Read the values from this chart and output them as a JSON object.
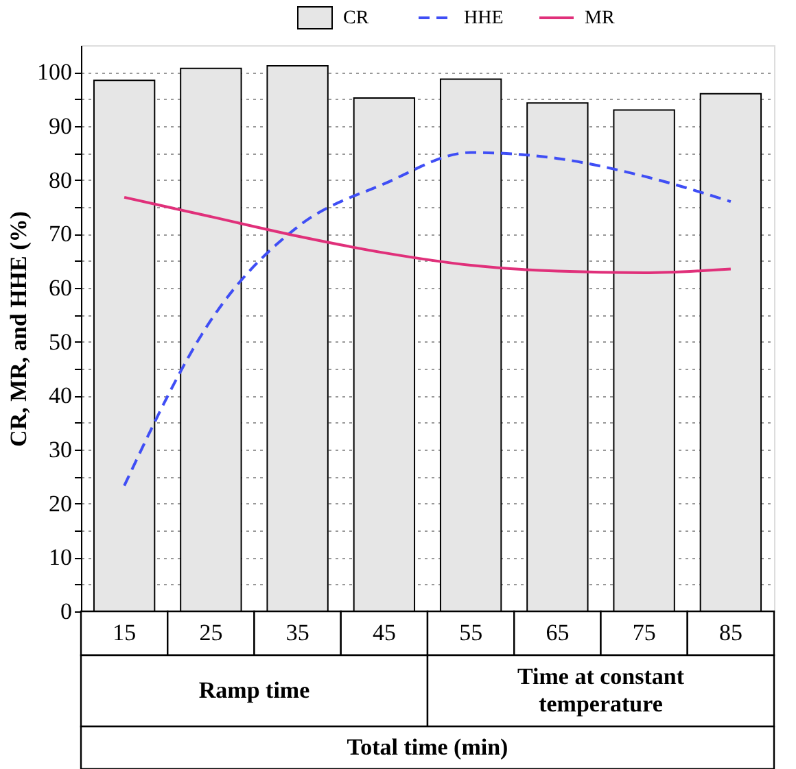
{
  "chart_data": {
    "type": "bar",
    "ylabel": "CR, MR, and HHE (%)",
    "xlabel": "Total time (min)",
    "categories": [
      "15",
      "25",
      "35",
      "45",
      "55",
      "65",
      "75",
      "85"
    ],
    "series": [
      {
        "name": "CR",
        "color": "#e6e6e6",
        "values": [
          98.5,
          100.7,
          101.2,
          95.2,
          98.7,
          94.3,
          93,
          96
        ]
      },
      {
        "name": "HHE",
        "type": "line",
        "line_style": "dashed",
        "color": "#3f4ef5",
        "values": [
          23.3,
          54,
          71.3,
          79.3,
          85.1,
          84,
          80.7,
          76
        ]
      },
      {
        "name": "MR",
        "type": "line",
        "line_style": "solid",
        "color": "#e0307a",
        "values": [
          76.8,
          73.2,
          69.6,
          66.5,
          64.2,
          63.1,
          62.8,
          63.5
        ]
      }
    ],
    "annotations": [
      "Ramp time",
      "Time at constant temperature"
    ],
    "ylim": [
      0,
      105
    ],
    "yticks": [
      0,
      {
        "value": 5,
        "label": null
      },
      10,
      {
        "value": 15,
        "label": null
      },
      20,
      {
        "value": 25,
        "label": null
      },
      30,
      {
        "value": 35,
        "label": null
      },
      40,
      {
        "value": 45,
        "label": null
      },
      50,
      {
        "value": 55,
        "label": null
      },
      60,
      {
        "value": 65,
        "label": null
      },
      70,
      {
        "value": 75,
        "label": null
      },
      80,
      {
        "value": 85,
        "label": null
      },
      90,
      {
        "value": 95,
        "label": null
      },
      100
    ],
    "grid": "y",
    "legend": "top",
    "marker": "none"
  }
}
